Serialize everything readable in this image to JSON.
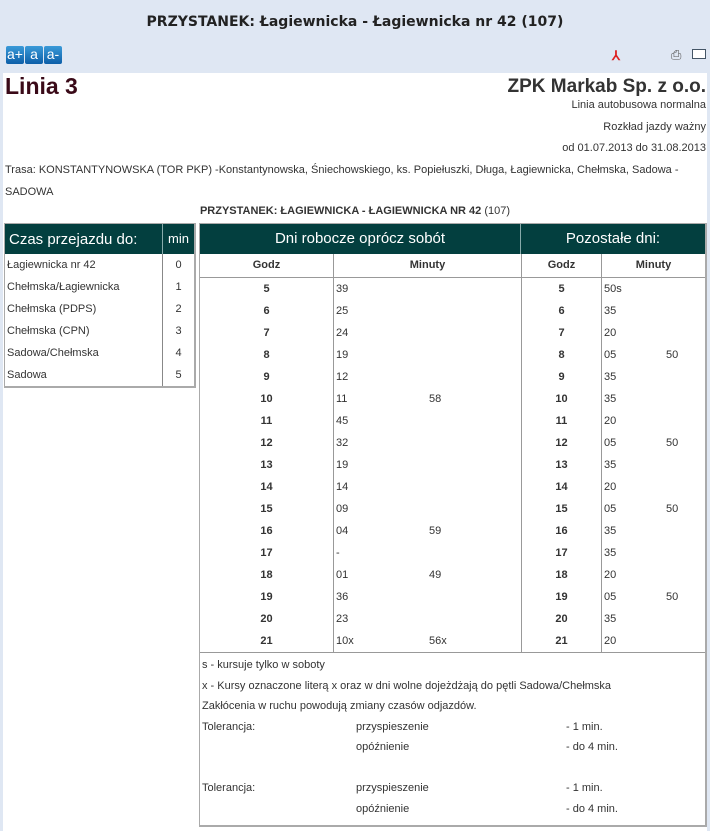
{
  "header": {
    "title": "PRZYSTANEK: Łagiewnicka - Łagiewnicka nr 42 (107)",
    "font_buttons": [
      "a+",
      "a",
      "a-"
    ],
    "icons": [
      "pdf-icon",
      "print-icon",
      "email-icon"
    ]
  },
  "line": {
    "name": "Linia 3",
    "company": "ZPK Markab Sp. z o.o.",
    "type": "Linia autobusowa normalna",
    "valid_label": "Rozkład jazdy ważny",
    "valid_range": "od 01.07.2013 do 31.08.2013"
  },
  "route": "Trasa: KONSTANTYNOWSKA (TOR PKP) -Konstantynowska, Śniechowskiego, ks. Popiełuszki, Długa, Łagiewnicka, Chełmska, Sadowa - SADOWA",
  "stop": {
    "name": "PRZYSTANEK: ŁAGIEWNICKA - ŁAGIEWNICKA NR 42",
    "code": "(107)"
  },
  "travel": {
    "header": "Czas przejazdu do:",
    "min_header": "min",
    "rows": [
      [
        "Łagiewnicka nr 42",
        "0"
      ],
      [
        "Chełmska/Łagiewnicka",
        "1"
      ],
      [
        "Chełmska (PDPS)",
        "2"
      ],
      [
        "Chełmska (CPN)",
        "3"
      ],
      [
        "Sadowa/Chełmska",
        "4"
      ],
      [
        "Sadowa",
        "5"
      ]
    ]
  },
  "timetable": {
    "weekday_header": "Dni robocze oprócz sobót",
    "other_header": "Pozostałe dni:",
    "hour_col": "Godz",
    "min_col": "Minuty",
    "rows": [
      [
        "5",
        [
          "39"
        ],
        "5",
        [
          "50s"
        ]
      ],
      [
        "6",
        [
          "25"
        ],
        "6",
        [
          "35"
        ]
      ],
      [
        "7",
        [
          "24"
        ],
        "7",
        [
          "20"
        ]
      ],
      [
        "8",
        [
          "19"
        ],
        "8",
        [
          "05",
          "50"
        ]
      ],
      [
        "9",
        [
          "12"
        ],
        "9",
        [
          "35"
        ]
      ],
      [
        "10",
        [
          "11",
          "58"
        ],
        "10",
        [
          "35"
        ]
      ],
      [
        "11",
        [
          "45"
        ],
        "11",
        [
          "20"
        ]
      ],
      [
        "12",
        [
          "32"
        ],
        "12",
        [
          "05",
          "50"
        ]
      ],
      [
        "13",
        [
          "19"
        ],
        "13",
        [
          "35"
        ]
      ],
      [
        "14",
        [
          "14"
        ],
        "14",
        [
          "20"
        ]
      ],
      [
        "15",
        [
          "09"
        ],
        "15",
        [
          "05",
          "50"
        ]
      ],
      [
        "16",
        [
          "04",
          "59"
        ],
        "16",
        [
          "35"
        ]
      ],
      [
        "17",
        [
          "-"
        ],
        "17",
        [
          "35"
        ]
      ],
      [
        "18",
        [
          "01",
          "49"
        ],
        "18",
        [
          "20"
        ]
      ],
      [
        "19",
        [
          "36"
        ],
        "19",
        [
          "05",
          "50"
        ]
      ],
      [
        "20",
        [
          "23"
        ],
        "20",
        [
          "35"
        ]
      ],
      [
        "21",
        [
          "10x",
          "56x"
        ],
        "21",
        [
          "20"
        ]
      ]
    ]
  },
  "notes": {
    "lines": [
      "s - kursuje tylko w soboty",
      "x - Kursy oznaczone literą x oraz w dni wolne dojeżdżają do pętli Sadowa/Chełmska",
      "Zakłócenia w ruchu powodują zmiany czasów odjazdów."
    ],
    "tolerance": [
      [
        "Tolerancja:",
        "przyspieszenie",
        "- 1 min."
      ],
      [
        "",
        "opóźnienie",
        "- do 4 min."
      ],
      [
        "",
        "",
        ""
      ],
      [
        "Tolerancja:",
        "przyspieszenie",
        "- 1 min."
      ],
      [
        "",
        "opóźnienie",
        "- do 4 min."
      ]
    ]
  }
}
